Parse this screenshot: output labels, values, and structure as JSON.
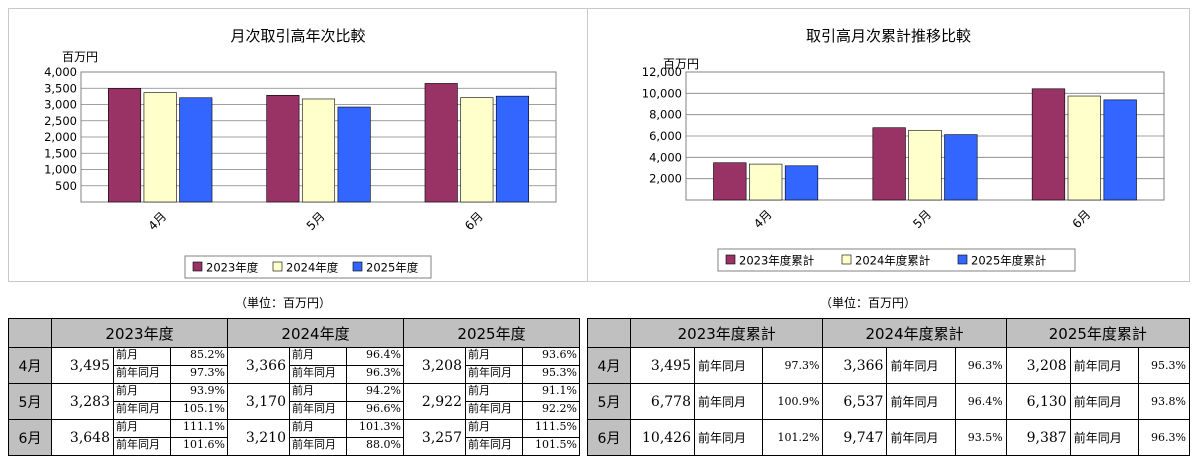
{
  "chart_data": [
    {
      "type": "bar",
      "title": "月次取引高年次比較",
      "ylabel": "百万円",
      "ylim": [
        0,
        4000
      ],
      "yticks": [
        "4,000",
        "3,500",
        "3,000",
        "2,500",
        "2,000",
        "1,500",
        "1,000",
        "500"
      ],
      "categories": [
        "4月",
        "5月",
        "6月"
      ],
      "series": [
        {
          "name": "2023年度",
          "values": [
            3495,
            3283,
            3648
          ],
          "color": "#993366"
        },
        {
          "name": "2024年度",
          "values": [
            3366,
            3170,
            3210
          ],
          "color": "#ffffcc"
        },
        {
          "name": "2025年度",
          "values": [
            3208,
            2922,
            3257
          ],
          "color": "#3366ff"
        }
      ],
      "legend": "bottom",
      "grid": true
    },
    {
      "type": "bar",
      "title": "取引高月次累計推移比較",
      "ylabel": "百万円",
      "ylim": [
        0,
        12000
      ],
      "yticks": [
        "12,000",
        "10,000",
        "8,000",
        "6,000",
        "4,000",
        "2,000"
      ],
      "categories": [
        "4月",
        "5月",
        "6月"
      ],
      "series": [
        {
          "name": "2023年度累計",
          "values": [
            3495,
            6778,
            10426
          ],
          "color": "#993366"
        },
        {
          "name": "2024年度累計",
          "values": [
            3366,
            6537,
            9747
          ],
          "color": "#ffffcc"
        },
        {
          "name": "2025年度累計",
          "values": [
            3208,
            6130,
            9387
          ],
          "color": "#3366ff"
        }
      ],
      "legend": "bottom",
      "grid": true
    }
  ],
  "unit_label": "（単位：百万円）",
  "monthly_table": {
    "headers": [
      "2023年度",
      "2024年度",
      "2025年度"
    ],
    "sub_labels": [
      "前月",
      "前年同月"
    ],
    "rows": [
      {
        "month": "4月",
        "cells": [
          {
            "value": "3,495",
            "prev_month": "85.2%",
            "prev_year": "97.3%"
          },
          {
            "value": "3,366",
            "prev_month": "96.4%",
            "prev_year": "96.3%"
          },
          {
            "value": "3,208",
            "prev_month": "93.6%",
            "prev_year": "95.3%"
          }
        ]
      },
      {
        "month": "5月",
        "cells": [
          {
            "value": "3,283",
            "prev_month": "93.9%",
            "prev_year": "105.1%"
          },
          {
            "value": "3,170",
            "prev_month": "94.2%",
            "prev_year": "96.6%"
          },
          {
            "value": "2,922",
            "prev_month": "91.1%",
            "prev_year": "92.2%"
          }
        ]
      },
      {
        "month": "6月",
        "cells": [
          {
            "value": "3,648",
            "prev_month": "111.1%",
            "prev_year": "101.6%"
          },
          {
            "value": "3,210",
            "prev_month": "101.3%",
            "prev_year": "88.0%"
          },
          {
            "value": "3,257",
            "prev_month": "111.5%",
            "prev_year": "101.5%"
          }
        ]
      }
    ]
  },
  "cumulative_table": {
    "headers": [
      "2023年度累計",
      "2024年度累計",
      "2025年度累計"
    ],
    "sub_label": "前年同月",
    "rows": [
      {
        "month": "4月",
        "cells": [
          {
            "value": "3,495",
            "prev_year": "97.3%"
          },
          {
            "value": "3,366",
            "prev_year": "96.3%"
          },
          {
            "value": "3,208",
            "prev_year": "95.3%"
          }
        ]
      },
      {
        "month": "5月",
        "cells": [
          {
            "value": "6,778",
            "prev_year": "100.9%"
          },
          {
            "value": "6,537",
            "prev_year": "96.4%"
          },
          {
            "value": "6,130",
            "prev_year": "93.8%"
          }
        ]
      },
      {
        "month": "6月",
        "cells": [
          {
            "value": "10,426",
            "prev_year": "101.2%"
          },
          {
            "value": "9,747",
            "prev_year": "93.5%"
          },
          {
            "value": "9,387",
            "prev_year": "96.3%"
          }
        ]
      }
    ]
  }
}
